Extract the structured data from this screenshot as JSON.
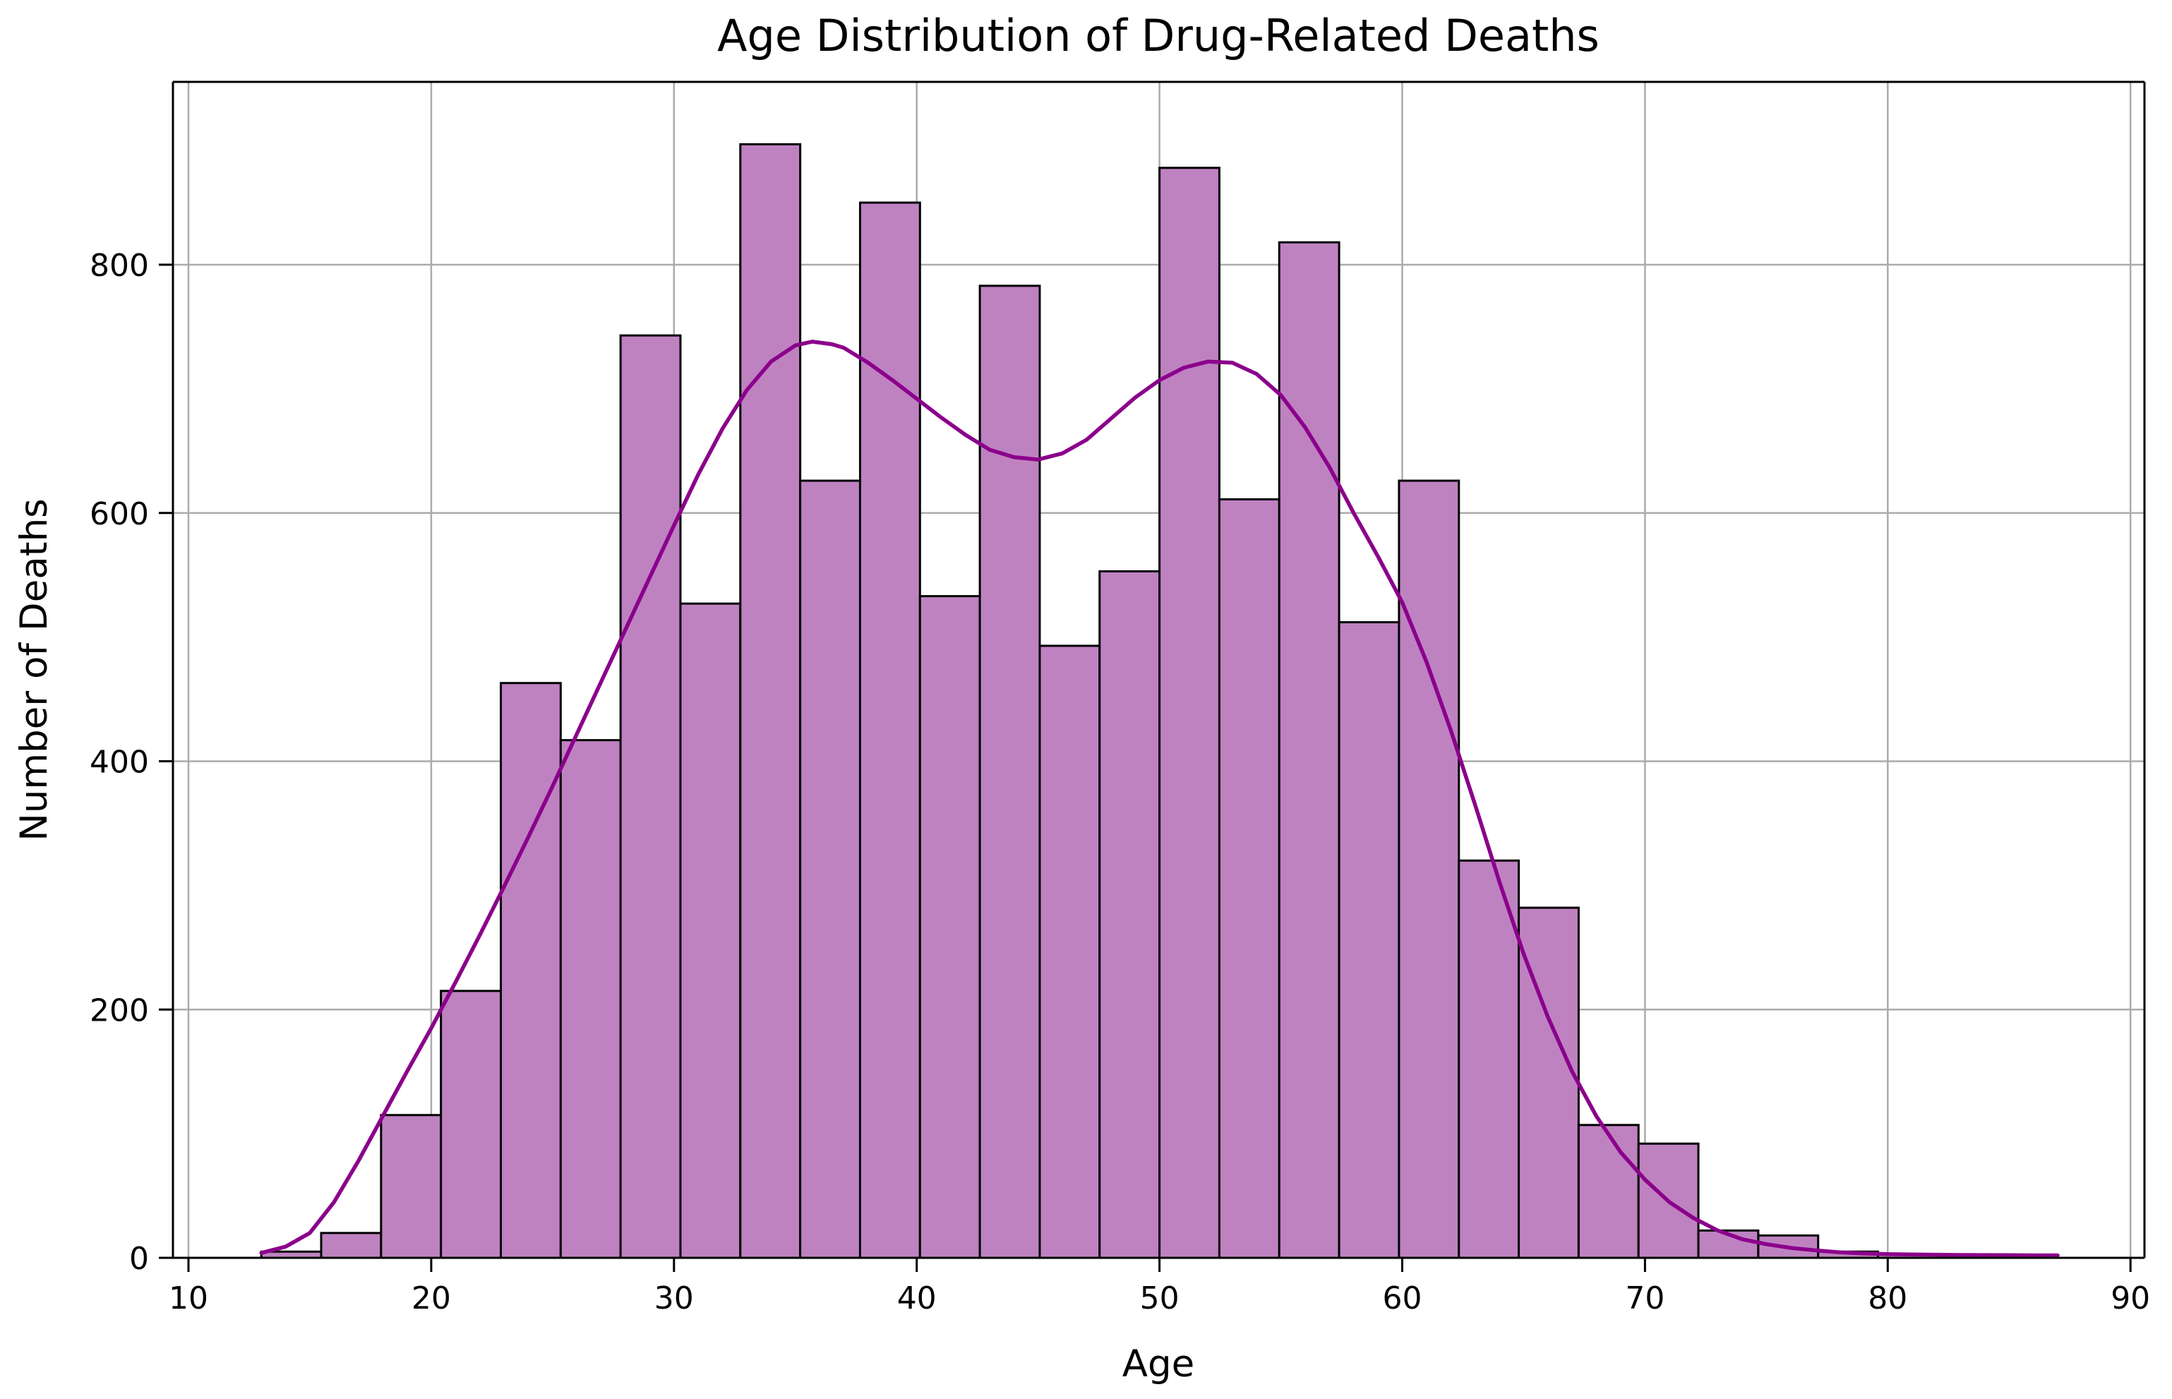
{
  "figure": {
    "title": "Age Distribution of Drug-Related Deaths",
    "xlabel": "Age",
    "ylabel": "Number of Deaths"
  },
  "chart_data": {
    "type": "histogram",
    "title": "Age Distribution of Drug-Related Deaths",
    "xlabel": "Age",
    "ylabel": "Number of Deaths",
    "legend": null,
    "grid": true,
    "xlim": [
      9.4,
      90.6
    ],
    "ylim": [
      0,
      947
    ],
    "x_ticks": [
      10,
      20,
      30,
      40,
      50,
      60,
      70,
      80,
      90
    ],
    "y_ticks": [
      0,
      200,
      400,
      600,
      800
    ],
    "colors": {
      "bar_fill": "#bf82c1",
      "bar_edge": "#000000",
      "kde_line": "#8b008b",
      "gridline": "#ababab",
      "spine": "#000000",
      "text": "#000000",
      "background": "#ffffff"
    },
    "bins": {
      "start": 13.0,
      "end": 87.0,
      "count": 30,
      "width": 2.4667,
      "counts": [
        5,
        20,
        115,
        215,
        463,
        417,
        743,
        527,
        897,
        626,
        850,
        533,
        783,
        493,
        553,
        878,
        611,
        818,
        512,
        626,
        320,
        282,
        107,
        92,
        22,
        18,
        5,
        3,
        2,
        2
      ]
    },
    "kde_points": [
      [
        13,
        4
      ],
      [
        14,
        9
      ],
      [
        15,
        20
      ],
      [
        16,
        45
      ],
      [
        17,
        78
      ],
      [
        18,
        114
      ],
      [
        19,
        150
      ],
      [
        20,
        185
      ],
      [
        21,
        222
      ],
      [
        22,
        260
      ],
      [
        23,
        299
      ],
      [
        24,
        339
      ],
      [
        25,
        380
      ],
      [
        26,
        422
      ],
      [
        27,
        464
      ],
      [
        28,
        506
      ],
      [
        29,
        548
      ],
      [
        30,
        590
      ],
      [
        31,
        631
      ],
      [
        32,
        668
      ],
      [
        33,
        699
      ],
      [
        34,
        722
      ],
      [
        35,
        735
      ],
      [
        35.7,
        738
      ],
      [
        36.5,
        736
      ],
      [
        37,
        733
      ],
      [
        38,
        721
      ],
      [
        39,
        707
      ],
      [
        40,
        692
      ],
      [
        41,
        677
      ],
      [
        42,
        663
      ],
      [
        43,
        651
      ],
      [
        44,
        645
      ],
      [
        45,
        643
      ],
      [
        46,
        648
      ],
      [
        47,
        659
      ],
      [
        48,
        676
      ],
      [
        49,
        693
      ],
      [
        50,
        707
      ],
      [
        51,
        717
      ],
      [
        52,
        722
      ],
      [
        53,
        721
      ],
      [
        54,
        712
      ],
      [
        55,
        695
      ],
      [
        56,
        669
      ],
      [
        57,
        637
      ],
      [
        58,
        600
      ],
      [
        59,
        565
      ],
      [
        60,
        528
      ],
      [
        61,
        480
      ],
      [
        62,
        425
      ],
      [
        63,
        365
      ],
      [
        64,
        303
      ],
      [
        65,
        245
      ],
      [
        66,
        194
      ],
      [
        67,
        150
      ],
      [
        68,
        114
      ],
      [
        69,
        85
      ],
      [
        70,
        63
      ],
      [
        71,
        45
      ],
      [
        72,
        32
      ],
      [
        73,
        22
      ],
      [
        74,
        15
      ],
      [
        75,
        11
      ],
      [
        76,
        8
      ],
      [
        77,
        6
      ],
      [
        78,
        4.5
      ],
      [
        79,
        3.5
      ],
      [
        80,
        3
      ],
      [
        81,
        2.7
      ],
      [
        82,
        2.5
      ],
      [
        83,
        2.3
      ],
      [
        84,
        2.2
      ],
      [
        85,
        2.1
      ],
      [
        86,
        2
      ],
      [
        87,
        2
      ]
    ]
  }
}
